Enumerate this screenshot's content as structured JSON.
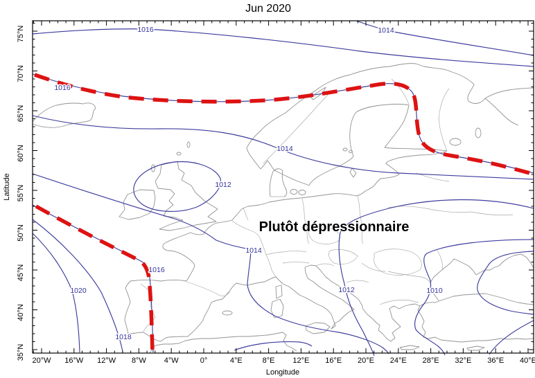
{
  "title": "Jun 2020",
  "annotation": "Plutôt dépressionnaire",
  "axes": {
    "x_label": "Longitude",
    "y_label": "Latitude",
    "x_ticks": [
      "20°W",
      "16°W",
      "12°W",
      "8°W",
      "4°W",
      "0°",
      "4°E",
      "8°E",
      "12°E",
      "16°E",
      "20°E",
      "24°E",
      "28°E",
      "32°E",
      "36°E",
      "40°E"
    ],
    "y_ticks": [
      "35°N",
      "40°N",
      "45°N",
      "50°N",
      "55°N",
      "60°N",
      "65°N",
      "70°N",
      "75°N"
    ]
  },
  "chart_data": {
    "type": "line",
    "subtype": "isobar_contour_map_over_europe",
    "title": "Jun 2020",
    "xlabel": "Longitude",
    "ylabel": "Latitude",
    "lon_range_deg": [
      -21,
      40
    ],
    "lat_range_deg": [
      34.5,
      76.5
    ],
    "grid": false,
    "isobar_values_hpa": [
      1010,
      1012,
      1014,
      1016,
      1018,
      1020
    ],
    "contour_labels": [
      {
        "value": "1016",
        "location": "top-left-arctic"
      },
      {
        "value": "1014",
        "location": "top-right-arctic"
      },
      {
        "value": "1016",
        "location": "north-atlantic-jet"
      },
      {
        "value": "1014",
        "location": "denmark-baltic"
      },
      {
        "value": "1012",
        "location": "uk-closed-low"
      },
      {
        "value": "1014",
        "location": "gulf-of-genoa"
      },
      {
        "value": "1016",
        "location": "biscay-iberia-front"
      },
      {
        "value": "1020",
        "location": "azores-ridge-southwest"
      },
      {
        "value": "1018",
        "location": "southwest-iberia"
      },
      {
        "value": "1012",
        "location": "adriatic-balkans"
      },
      {
        "value": "1010",
        "location": "black-sea-turkey"
      }
    ],
    "fronts": [
      {
        "style": "thick-red-dashed",
        "track": "from ~66N in the Atlantic east along ~65-67N over Norway, dipping south over Finland then southeast into Russia toward 40E"
      },
      {
        "style": "thick-red-dashed",
        "track": "from ~52N in the Atlantic southeast to northwest Spain (~44N 6W), then south along the Portugal/Spain border to ~35N"
      }
    ],
    "colors": {
      "isobar": "#3c3c9d",
      "front": "#de1212",
      "coastline": "#929292",
      "annotation": "#000000",
      "background": "#ffffff"
    }
  }
}
